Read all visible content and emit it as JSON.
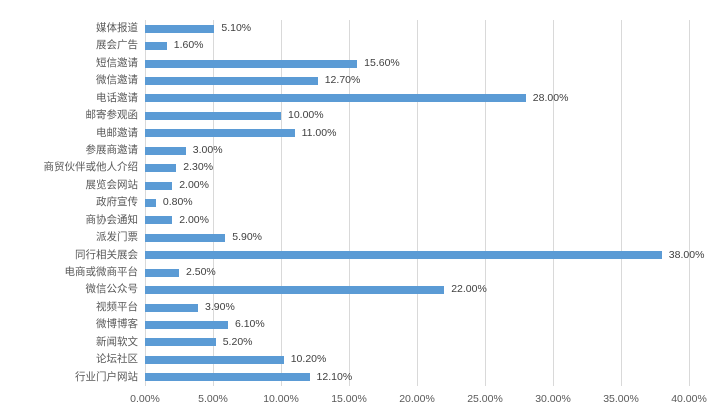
{
  "chart_data": {
    "type": "bar",
    "orientation": "horizontal",
    "title": "",
    "categories": [
      "媒体报道",
      "展会广告",
      "短信邀请",
      "微信邀请",
      "电话邀请",
      "邮寄参观函",
      "电邮邀请",
      "参展商邀请",
      "商贸伙伴或他人介绍",
      "展览会网站",
      "政府宣传",
      "商协会通知",
      "派发门票",
      "同行相关展会",
      "电商或微商平台",
      "微信公众号",
      "视频平台",
      "微博博客",
      "新闻软文",
      "论坛社区",
      "行业门户网站"
    ],
    "values": [
      5.1,
      1.6,
      15.6,
      12.7,
      28.0,
      10.0,
      11.0,
      3.0,
      2.3,
      2.0,
      0.8,
      2.0,
      5.9,
      38.0,
      2.5,
      22.0,
      3.9,
      6.1,
      5.2,
      10.2,
      12.1
    ],
    "value_labels": [
      "5.10%",
      "1.60%",
      "15.60%",
      "12.70%",
      "28.00%",
      "10.00%",
      "11.00%",
      "3.00%",
      "2.30%",
      "2.00%",
      "0.80%",
      "2.00%",
      "5.90%",
      "38.00%",
      "2.50%",
      "22.00%",
      "3.90%",
      "6.10%",
      "5.20%",
      "10.20%",
      "12.10%"
    ],
    "x_ticks": [
      "0.00%",
      "5.00%",
      "10.00%",
      "15.00%",
      "20.00%",
      "25.00%",
      "30.00%",
      "35.00%",
      "40.00%"
    ],
    "xlim": [
      0,
      40
    ],
    "xlabel": "",
    "ylabel": "",
    "grid": "vertical-major",
    "legend": "none",
    "colors": {
      "bar": "#5B9BD5",
      "gridline": "#D9D9D9",
      "axis_text": "#595959",
      "data_label_text": "#404040",
      "background": "#FFFFFF"
    }
  }
}
